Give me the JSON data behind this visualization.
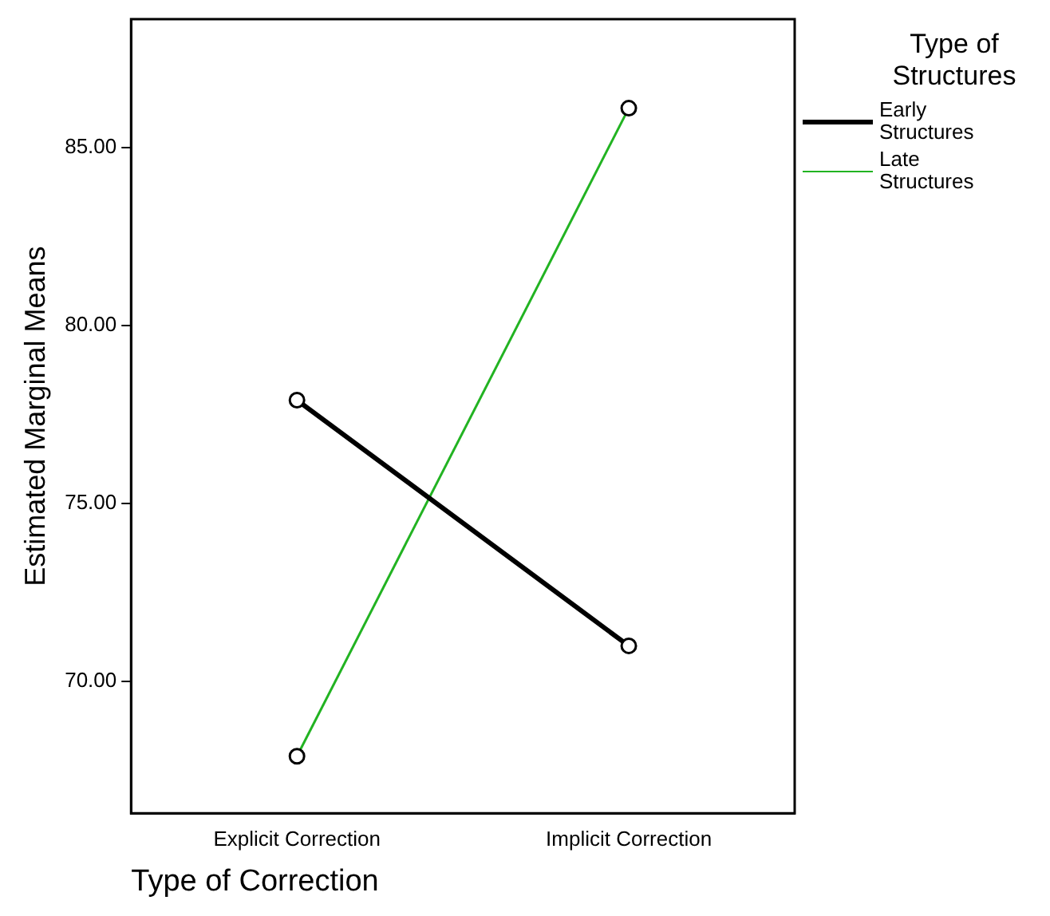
{
  "chart_data": {
    "type": "line",
    "xlabel": "Type of Correction",
    "ylabel": "Estimated Marginal Means",
    "legend_title": "Type of Structures",
    "categories": [
      "Explicit Correction",
      "Implicit Correction"
    ],
    "series": [
      {
        "name": "Early Structures",
        "color": "#000000",
        "values": [
          77.9,
          71.0
        ]
      },
      {
        "name": "Late Structures",
        "color": "#22b322",
        "values": [
          67.9,
          86.1
        ]
      }
    ],
    "ylim": [
      66.3,
      88.6
    ],
    "yticks": [
      {
        "value": 70,
        "label": "70.00"
      },
      {
        "value": 75,
        "label": "75.00"
      },
      {
        "value": 80,
        "label": "80.00"
      },
      {
        "value": 85,
        "label": "85.00"
      }
    ],
    "grid": false,
    "legend": "right",
    "marker": "circle",
    "line_style": "solid"
  }
}
